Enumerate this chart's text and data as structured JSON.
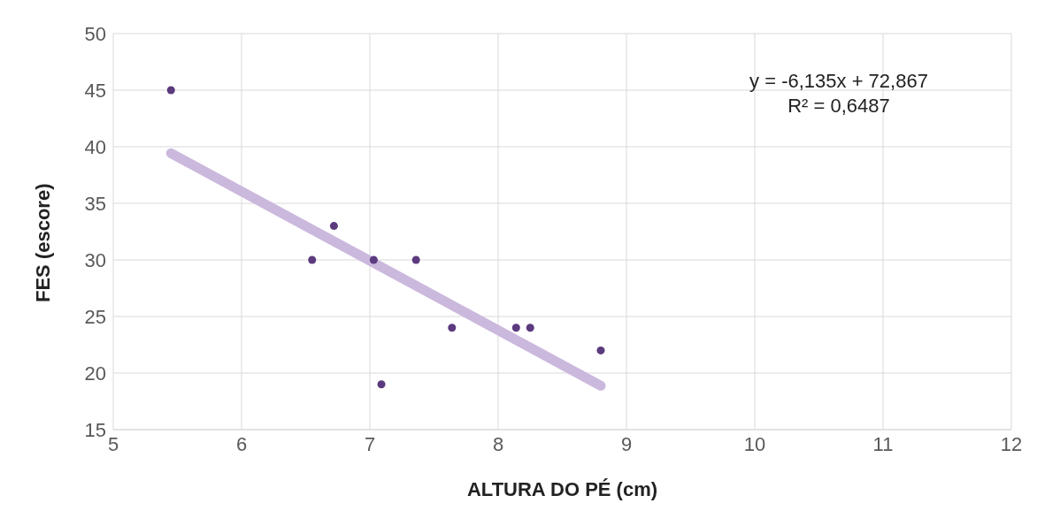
{
  "chart_data": {
    "type": "scatter",
    "xlabel": "ALTURA DO PÉ (cm)",
    "ylabel": "FES (escore)",
    "xlim": [
      5,
      12
    ],
    "xticks": [
      5,
      6,
      7,
      8,
      9,
      10,
      11,
      12
    ],
    "ylim": [
      15,
      50
    ],
    "yticks": [
      15,
      20,
      25,
      30,
      35,
      40,
      45,
      50
    ],
    "grid": true,
    "line_style": "solid",
    "annotations": [
      "y = -6,135x + 72,867",
      "R² = 0,6487"
    ],
    "series": [
      {
        "color": "#5b3a7e",
        "marker": "circle",
        "x": [
          5.45,
          6.55,
          6.72,
          7.03,
          7.09,
          7.36,
          7.64,
          8.14,
          8.25,
          8.8
        ],
        "values": [
          45,
          30,
          33,
          30,
          19,
          30,
          24,
          24,
          24,
          22
        ]
      },
      {
        "type": "line",
        "color": "#cbb8dd",
        "marker": "none",
        "x": [
          5.45,
          8.8
        ],
        "values": [
          39.43,
          18.88
        ]
      }
    ]
  }
}
